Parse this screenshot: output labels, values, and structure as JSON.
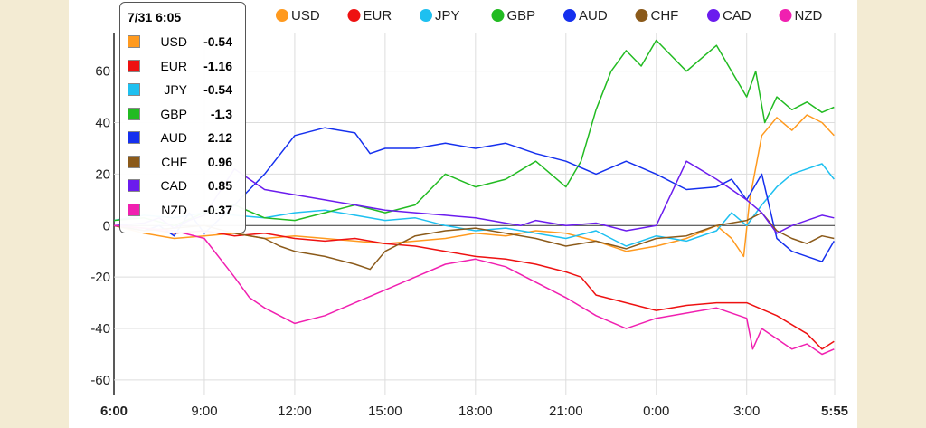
{
  "chart_data": {
    "type": "line",
    "title": "",
    "xlabel": "",
    "ylabel": "",
    "x_ticks": [
      "6:00",
      "9:00",
      "12:00",
      "15:00",
      "18:00",
      "21:00",
      "0:00",
      "3:00",
      "5:55"
    ],
    "x_tick_hours": [
      0,
      3,
      6,
      9,
      12,
      15,
      18,
      21,
      23.92
    ],
    "xlim": [
      0,
      23.92
    ],
    "ylim": [
      -66,
      75
    ],
    "y_ticks": [
      -60,
      -40,
      -20,
      0,
      20,
      40,
      60
    ],
    "grid": true,
    "legend_position": "top",
    "series": [
      {
        "name": "USD",
        "color": "#ff9a1f",
        "x": [
          0,
          1,
          2,
          3,
          4,
          5,
          6,
          7,
          8,
          9,
          10,
          11,
          12,
          13,
          14,
          15,
          16,
          17,
          18,
          19,
          20,
          20.5,
          20.9,
          21.1,
          21.5,
          22,
          22.5,
          23,
          23.5,
          23.9
        ],
        "y": [
          0,
          -3,
          -5,
          -4,
          -3,
          -5,
          -4,
          -5,
          -6,
          -7,
          -6,
          -5,
          -3,
          -4,
          -2,
          -3,
          -6,
          -10,
          -8,
          -5,
          0,
          -5,
          -12,
          10,
          35,
          42,
          37,
          43,
          40,
          35
        ]
      },
      {
        "name": "EUR",
        "color": "#ee1111",
        "x": [
          0,
          1,
          2,
          3,
          4,
          5,
          6,
          7,
          8,
          9,
          10,
          11,
          12,
          13,
          14,
          15,
          15.5,
          16,
          17,
          18,
          19,
          20,
          21,
          22,
          23,
          23.5,
          23.9
        ],
        "y": [
          0,
          -1,
          -3,
          -2,
          -4,
          -3,
          -5,
          -6,
          -5,
          -7,
          -8,
          -10,
          -12,
          -13,
          -15,
          -18,
          -20,
          -27,
          -30,
          -33,
          -31,
          -30,
          -30,
          -35,
          -42,
          -48,
          -45
        ]
      },
      {
        "name": "JPY",
        "color": "#1ec0f0",
        "x": [
          0,
          1,
          2,
          3,
          4,
          5,
          6,
          7,
          8,
          9,
          10,
          11,
          12,
          13,
          14,
          15,
          16,
          17,
          18,
          19,
          20,
          20.5,
          21,
          21.5,
          22,
          22.5,
          23,
          23.5,
          23.9
        ],
        "y": [
          2,
          4,
          3,
          5,
          4,
          3,
          5,
          6,
          4,
          2,
          3,
          0,
          -2,
          -1,
          -3,
          -5,
          -2,
          -8,
          -4,
          -6,
          -2,
          5,
          0,
          8,
          15,
          20,
          22,
          24,
          18
        ]
      },
      {
        "name": "GBP",
        "color": "#22bb22",
        "x": [
          0,
          1,
          2,
          3,
          4,
          5,
          6,
          7,
          8,
          9,
          10,
          11,
          12,
          13,
          14,
          15,
          15.5,
          16,
          16.5,
          17,
          17.5,
          18,
          18.5,
          19,
          19.5,
          20,
          20.5,
          21,
          21.3,
          21.6,
          22,
          22.5,
          23,
          23.5,
          23.9
        ],
        "y": [
          2,
          3,
          0,
          5,
          8,
          3,
          2,
          5,
          8,
          5,
          8,
          20,
          15,
          18,
          25,
          15,
          25,
          45,
          60,
          68,
          62,
          72,
          66,
          60,
          65,
          70,
          60,
          50,
          60,
          40,
          50,
          45,
          48,
          44,
          46
        ]
      },
      {
        "name": "AUD",
        "color": "#1530ee",
        "x": [
          0,
          1,
          1.5,
          2,
          2.5,
          3,
          4,
          5,
          6,
          7,
          8,
          8.5,
          9,
          10,
          11,
          12,
          13,
          14,
          15,
          16,
          17,
          18,
          19,
          20,
          20.5,
          21,
          21.5,
          22,
          22.5,
          23,
          23.5,
          23.9
        ],
        "y": [
          0,
          -2,
          0,
          -4,
          5,
          -3,
          8,
          20,
          35,
          38,
          36,
          28,
          30,
          30,
          32,
          30,
          32,
          28,
          25,
          20,
          25,
          20,
          14,
          15,
          18,
          10,
          20,
          -5,
          -10,
          -12,
          -14,
          -6
        ]
      },
      {
        "name": "CHF",
        "color": "#8b5a1a",
        "x": [
          0,
          1,
          2,
          3,
          4,
          5,
          5.5,
          6,
          7,
          8,
          8.5,
          9,
          10,
          11,
          12,
          13,
          14,
          15,
          16,
          17,
          18,
          19,
          20,
          21,
          21.5,
          22,
          22.5,
          23,
          23.5,
          23.9
        ],
        "y": [
          0,
          -2,
          -1,
          0,
          -3,
          -5,
          -8,
          -10,
          -12,
          -15,
          -17,
          -10,
          -4,
          -2,
          -1,
          -3,
          -5,
          -8,
          -6,
          -9,
          -5,
          -4,
          0,
          2,
          5,
          -2,
          -5,
          -7,
          -4,
          -5
        ]
      },
      {
        "name": "CAD",
        "color": "#6b1cee",
        "x": [
          0,
          1,
          1.5,
          2,
          2.5,
          3,
          4,
          5,
          6,
          7,
          8,
          9,
          10,
          11,
          12,
          13,
          13.5,
          14,
          15,
          16,
          17,
          18,
          19,
          20,
          21,
          21.5,
          22,
          22.5,
          23,
          23.5,
          23.9
        ],
        "y": [
          0,
          1,
          3,
          -1,
          2,
          4,
          22,
          14,
          12,
          10,
          8,
          6,
          5,
          4,
          3,
          1,
          0,
          2,
          0,
          1,
          -2,
          0,
          25,
          18,
          10,
          5,
          -3,
          0,
          2,
          4,
          3
        ]
      },
      {
        "name": "NZD",
        "color": "#f020b0",
        "x": [
          0,
          1,
          2,
          3,
          4,
          4.5,
          5,
          6,
          7,
          8,
          9,
          10,
          11,
          12,
          13,
          14,
          15,
          16,
          17,
          18,
          19,
          20,
          21,
          21.2,
          21.5,
          22,
          22.5,
          23,
          23.5,
          23.9
        ],
        "y": [
          0,
          -1,
          -2,
          -5,
          -20,
          -28,
          -32,
          -38,
          -35,
          -30,
          -25,
          -20,
          -15,
          -13,
          -16,
          -22,
          -28,
          -35,
          -40,
          -36,
          -34,
          -32,
          -36,
          -48,
          -40,
          -44,
          -48,
          -46,
          -50,
          -48
        ]
      }
    ]
  },
  "tooltip": {
    "title": "7/31 6:05",
    "rows": [
      {
        "name": "USD",
        "value": "-0.54",
        "color": "#ff9a1f"
      },
      {
        "name": "EUR",
        "value": "-1.16",
        "color": "#ee1111"
      },
      {
        "name": "JPY",
        "value": "-0.54",
        "color": "#1ec0f0"
      },
      {
        "name": "GBP",
        "value": "-1.3",
        "color": "#22bb22"
      },
      {
        "name": "AUD",
        "value": "2.12",
        "color": "#1530ee"
      },
      {
        "name": "CHF",
        "value": "0.96",
        "color": "#8b5a1a"
      },
      {
        "name": "CAD",
        "value": "0.85",
        "color": "#6b1cee"
      },
      {
        "name": "NZD",
        "value": "-0.37",
        "color": "#f020b0"
      }
    ]
  }
}
